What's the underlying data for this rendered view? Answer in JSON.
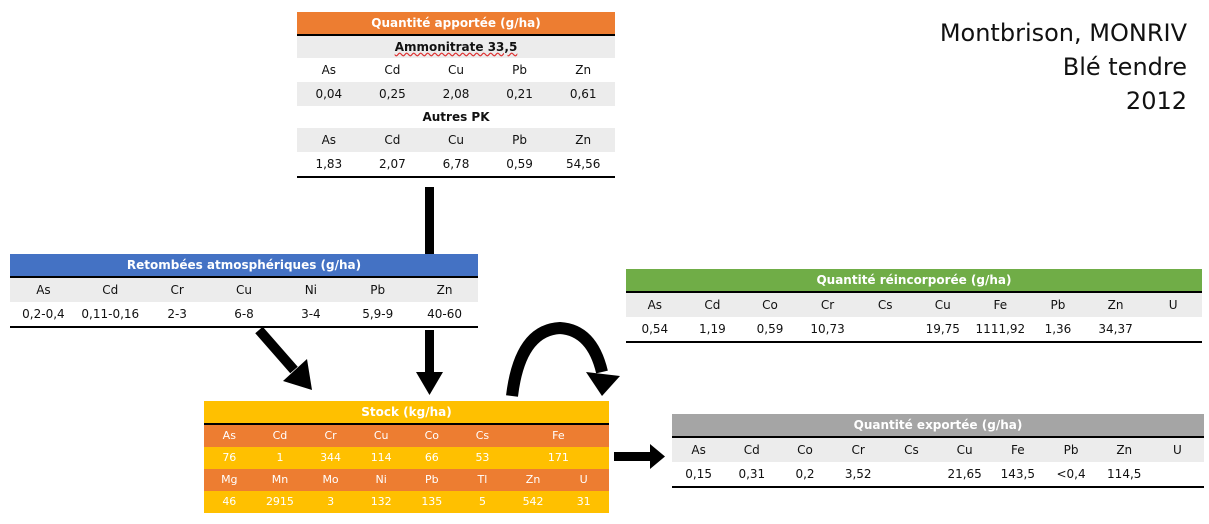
{
  "title": {
    "line1": "Montbrison, MONRIV",
    "line2": "Blé tendre",
    "line3": "2012"
  },
  "apportee": {
    "header": "Quantité apportée (g/ha)",
    "sub1": "Ammonitrate 33,5",
    "cols1": [
      "As",
      "Cd",
      "Cu",
      "Pb",
      "Zn"
    ],
    "vals1": [
      "0,04",
      "0,25",
      "2,08",
      "0,21",
      "0,61"
    ],
    "sub2": "Autres PK",
    "cols2": [
      "As",
      "Cd",
      "Cu",
      "Pb",
      "Zn"
    ],
    "vals2": [
      "1,83",
      "2,07",
      "6,78",
      "0,59",
      "54,56"
    ]
  },
  "retombees": {
    "header": "Retombées atmosphériques (g/ha)",
    "cols": [
      "As",
      "Cd",
      "Cr",
      "Cu",
      "Ni",
      "Pb",
      "Zn"
    ],
    "vals": [
      "0,2-0,4",
      "0,11-0,16",
      "2-3",
      "6-8",
      "3-4",
      "5,9-9",
      "40-60"
    ]
  },
  "reincorporee": {
    "header": "Quantité réincorporée (g/ha)",
    "cols": [
      "As",
      "Cd",
      "Co",
      "Cr",
      "Cs",
      "Cu",
      "Fe",
      "Pb",
      "Zn",
      "U"
    ],
    "vals": [
      "0,54",
      "1,19",
      "0,59",
      "10,73",
      "",
      "19,75",
      "1111,92",
      "1,36",
      "34,37",
      ""
    ]
  },
  "stock": {
    "header": "Stock (kg/ha)",
    "row1": [
      "As",
      "Cd",
      "Cr",
      "Cu",
      "Co",
      "Cs",
      "Fe"
    ],
    "row2": [
      "76",
      "1",
      "344",
      "114",
      "66",
      "53",
      "171"
    ],
    "row3": [
      "Mg",
      "Mn",
      "Mo",
      "Ni",
      "Pb",
      "Tl",
      "Zn",
      "U"
    ],
    "row4": [
      "46",
      "2915",
      "3",
      "132",
      "135",
      "5",
      "542",
      "31"
    ]
  },
  "exportee": {
    "header": "Quantité exportée (g/ha)",
    "cols": [
      "As",
      "Cd",
      "Co",
      "Cr",
      "Cs",
      "Cu",
      "Fe",
      "Pb",
      "Zn",
      "U"
    ],
    "vals": [
      "0,15",
      "0,31",
      "0,2",
      "3,52",
      "",
      "21,65",
      "143,5",
      "<0,4",
      "114,5",
      ""
    ]
  },
  "colors": {
    "orange": "#ed7d31",
    "blue": "#4472c4",
    "green": "#70ad47",
    "yellow": "#ffc000",
    "gray": "#a5a5a5"
  }
}
